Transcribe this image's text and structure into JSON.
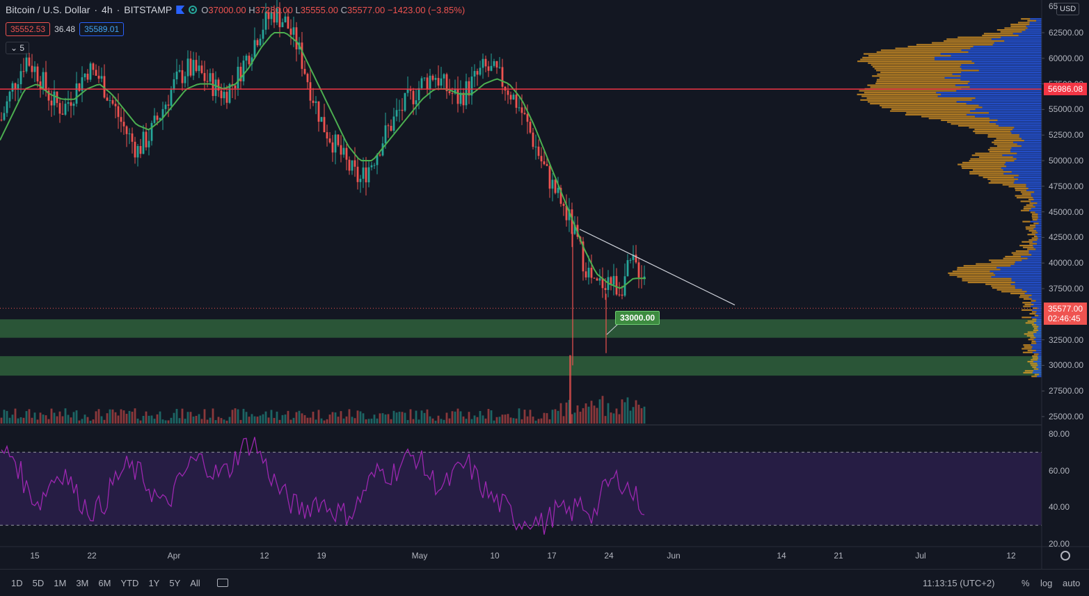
{
  "header": {
    "symbol": "Bitcoin / U.S. Dollar",
    "interval": "4h",
    "exchange": "BITSTAMP",
    "open": "37000.00",
    "high": "37280.00",
    "low": "35555.00",
    "close": "35577.00",
    "change": "−1423.00 (−3.85%)"
  },
  "ohlc_labels": {
    "o": "O",
    "h": "H",
    "l": "L",
    "c": "C"
  },
  "bid": "35552.53",
  "spread": "36.48",
  "ask": "35589.01",
  "indicators_collapsed": "5",
  "currency": "USD",
  "price_axis": {
    "min": 24000,
    "max": 65000,
    "labels": [
      "62500.00",
      "60000.00",
      "57500.00",
      "55000.00",
      "52500.00",
      "50000.00",
      "47500.00",
      "45000.00",
      "42500.00",
      "40000.00",
      "37500.00",
      "32500.00",
      "30000.00",
      "27500.00",
      "25000.00"
    ],
    "label_values": [
      62500,
      60000,
      57500,
      55000,
      52500,
      50000,
      47500,
      45000,
      42500,
      40000,
      37500,
      32500,
      30000,
      27500,
      25000
    ],
    "top_partial": "65"
  },
  "horizontal_line": {
    "value": 56986.08,
    "label": "56986.08",
    "color": "#f23645"
  },
  "last_price": {
    "value": 35577,
    "label": "35577.00",
    "countdown": "02:46:45",
    "color": "#ef5350"
  },
  "callout": {
    "label": "33000.00",
    "value": 33000
  },
  "zones": [
    {
      "from": 32700,
      "to": 34500
    },
    {
      "from": 29000,
      "to": 30900
    }
  ],
  "trendline": {
    "start": 43300,
    "end": 35900
  },
  "rsi_axis": {
    "labels": [
      "80.00",
      "60.00",
      "40.00",
      "20.00"
    ],
    "values": [
      80,
      60,
      40,
      20
    ],
    "upper_band": 70,
    "lower_band": 30
  },
  "time_axis": [
    "15",
    "22",
    "Apr",
    "12",
    "19",
    "May",
    "10",
    "17",
    "24",
    "Jun",
    "14",
    "21",
    "Jul",
    "12"
  ],
  "timeframes": [
    "1D",
    "5D",
    "1M",
    "3M",
    "6M",
    "YTD",
    "1Y",
    "5Y",
    "All"
  ],
  "clock": "11:13:15 (UTC+2)",
  "options": {
    "percent": "%",
    "log": "log",
    "auto": "auto"
  },
  "colors": {
    "up": "#26a69a",
    "down": "#ef5350",
    "ma": "#4caf50",
    "rsi": "#9c27b0",
    "zone": "#2e5c3a",
    "vp_up": "#2962ff",
    "vp_down": "#f5a623"
  },
  "chart_data": {
    "type": "line",
    "series": [
      {
        "values": [
          54000,
          57500,
          60000,
          58500,
          56000,
          55000,
          57000,
          59000,
          58000,
          55500,
          53000,
          51000,
          52500,
          55000,
          57500,
          59000,
          58500,
          57500,
          56500,
          58000,
          60500,
          63000,
          64500,
          63500,
          61000,
          57000,
          53500,
          51500,
          49500,
          48000,
          50000,
          52500,
          54500,
          56000,
          57500,
          58500,
          57000,
          56000,
          57500,
          59000,
          58500,
          57000,
          55000,
          52000,
          49000,
          46500,
          44000,
          40500,
          37500,
          38500,
          37500,
          40000,
          39000
        ]
      },
      {
        "values": [
          52000,
          54500,
          57000,
          57500,
          56500,
          56000,
          56000,
          57000,
          57500,
          56500,
          55000,
          53500,
          53000,
          54000,
          55500,
          57000,
          57500,
          57500,
          57000,
          57500,
          59000,
          61000,
          62500,
          62500,
          61500,
          59000,
          56500,
          54000,
          51500,
          50000,
          50000,
          51500,
          53000,
          54500,
          56000,
          57000,
          57000,
          56500,
          56500,
          57500,
          58000,
          57500,
          56000,
          53500,
          50500,
          47500,
          44500,
          41500,
          39000,
          38000,
          37500,
          38500,
          38500
        ]
      }
    ],
    "rsi": [
      70,
      68,
      50,
      42,
      55,
      60,
      46,
      38,
      40,
      55,
      62,
      58,
      48,
      40,
      52,
      64,
      66,
      58,
      60,
      72,
      76,
      62,
      50,
      42,
      38,
      44,
      40,
      36,
      38,
      52,
      60,
      58,
      66,
      68,
      56,
      50,
      58,
      64,
      52,
      44,
      40,
      32,
      34,
      30,
      38,
      36,
      42,
      36,
      52,
      56,
      48,
      40
    ]
  }
}
